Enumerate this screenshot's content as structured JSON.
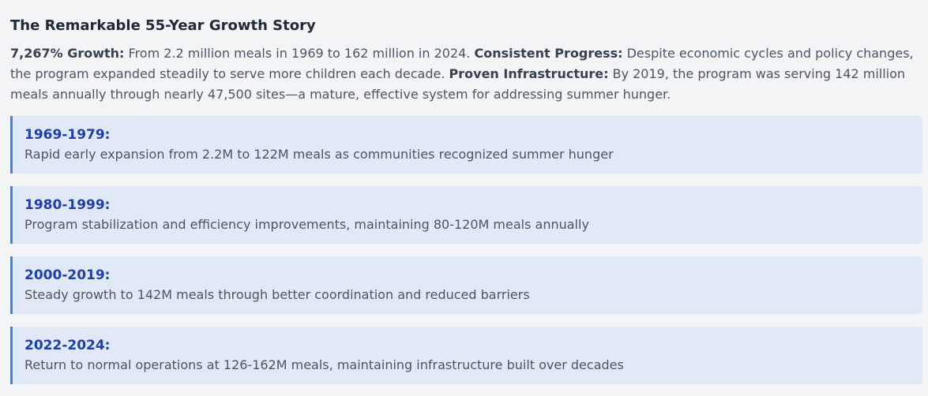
{
  "title": "The Remarkable 55-Year Growth Story",
  "summary": {
    "growth_label": "7,267% Growth:",
    "growth_text": " From 2.2 million meals in 1969 to 162 million in 2024. ",
    "progress_label": "Consistent Progress:",
    "progress_text": " Despite economic cycles and policy changes, the program expanded steadily to serve more children each decade. ",
    "infrastructure_label": "Proven Infrastructure:",
    "infrastructure_text": " By 2019, the program was serving 142 million meals annually through nearly 47,500 sites—a mature, effective system for addressing summer hunger."
  },
  "periods": [
    {
      "title": "1969-1979:",
      "description": "Rapid early expansion from 2.2M to 122M meals as communities recognized summer hunger"
    },
    {
      "title": "1980-1999:",
      "description": "Program stabilization and efficiency improvements, maintaining 80-120M meals annually"
    },
    {
      "title": "2000-2019:",
      "description": "Steady growth to 142M meals through better coordination and reduced barriers"
    },
    {
      "title": "2022-2024:",
      "description": "Return to normal operations at 126-162M meals, maintaining infrastructure built over decades"
    }
  ],
  "colors": {
    "accent": "#3b82f6",
    "card_background": "#e1e9f6",
    "period_title": "#1e40af",
    "page_background": "#f3f4f6"
  }
}
